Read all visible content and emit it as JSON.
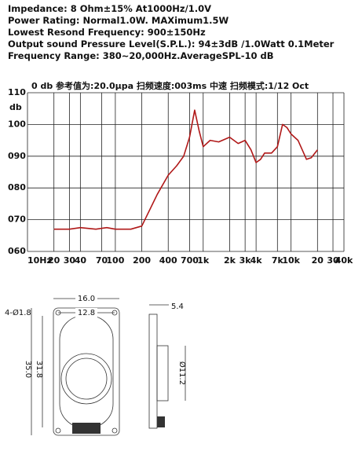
{
  "specs": [
    "Impedance: 8 Ohm±15%  At1000Hz/1.0V",
    "Power Rating: Normal1.0W. MAXimum1.5W",
    "Lowest Resond Frequency: 900±150Hz",
    "Output sound Pressure Level(S.P.L.): 94±3dB /1.0Watt 0.1Meter",
    "Frequency Range: 380~20,000Hz.AverageSPL-10 dB"
  ],
  "chart_data": {
    "type": "line",
    "header": "0 db    参考值为:20.0μpa    扫频速度:003ms    中速    扫频模式:1/12    Oct",
    "y_label": "db",
    "log_x": true,
    "grid": true,
    "xlim": [
      10,
      40000
    ],
    "ylim": [
      60,
      110
    ],
    "xticks": [
      {
        "value": 10,
        "label": "10Hz"
      },
      20,
      30,
      40,
      70,
      100,
      200,
      400,
      700,
      {
        "value": 1000,
        "label": "1k"
      },
      {
        "value": 2000,
        "label": "2k"
      },
      {
        "value": 3000,
        "label": "3k"
      },
      {
        "value": 4000,
        "label": "4k"
      },
      {
        "value": 7000,
        "label": "7k"
      },
      {
        "value": 10000,
        "label": "10k"
      },
      {
        "value": 20000,
        "label": "20"
      },
      {
        "value": 30000,
        "label": "30"
      },
      {
        "value": 40000,
        "label": "40k"
      }
    ],
    "yticks": [
      {
        "value": 60,
        "label": "060"
      },
      {
        "value": 70,
        "label": "070"
      },
      {
        "value": 80,
        "label": "080"
      },
      {
        "value": 90,
        "label": "090"
      },
      100,
      110
    ],
    "x": [
      20,
      30,
      40,
      60,
      80,
      100,
      150,
      200,
      300,
      400,
      500,
      600,
      700,
      800,
      900,
      1000,
      1200,
      1500,
      2000,
      2500,
      3000,
      3500,
      4000,
      4500,
      5000,
      6000,
      7000,
      8000,
      9000,
      10000,
      12000,
      15000,
      17000,
      20000
    ],
    "series": [
      {
        "name": "SPL",
        "color": "#b01818",
        "values": [
          67,
          67,
          67.5,
          67,
          67.5,
          67,
          67,
          68,
          78,
          84,
          87,
          90,
          96,
          104.5,
          98,
          93,
          95,
          94.5,
          96,
          94,
          95,
          92,
          88,
          89,
          91,
          91,
          93,
          100,
          99,
          97,
          95,
          89,
          89.5,
          92
        ]
      }
    ]
  },
  "drawing": {
    "width_outer": "16.0",
    "width_inner": "12.8",
    "holes": "4-Ø1.8",
    "height_outer": "35.0",
    "height_inner": "31.8",
    "depth": "5.4",
    "magnet": "Ø11.2"
  }
}
